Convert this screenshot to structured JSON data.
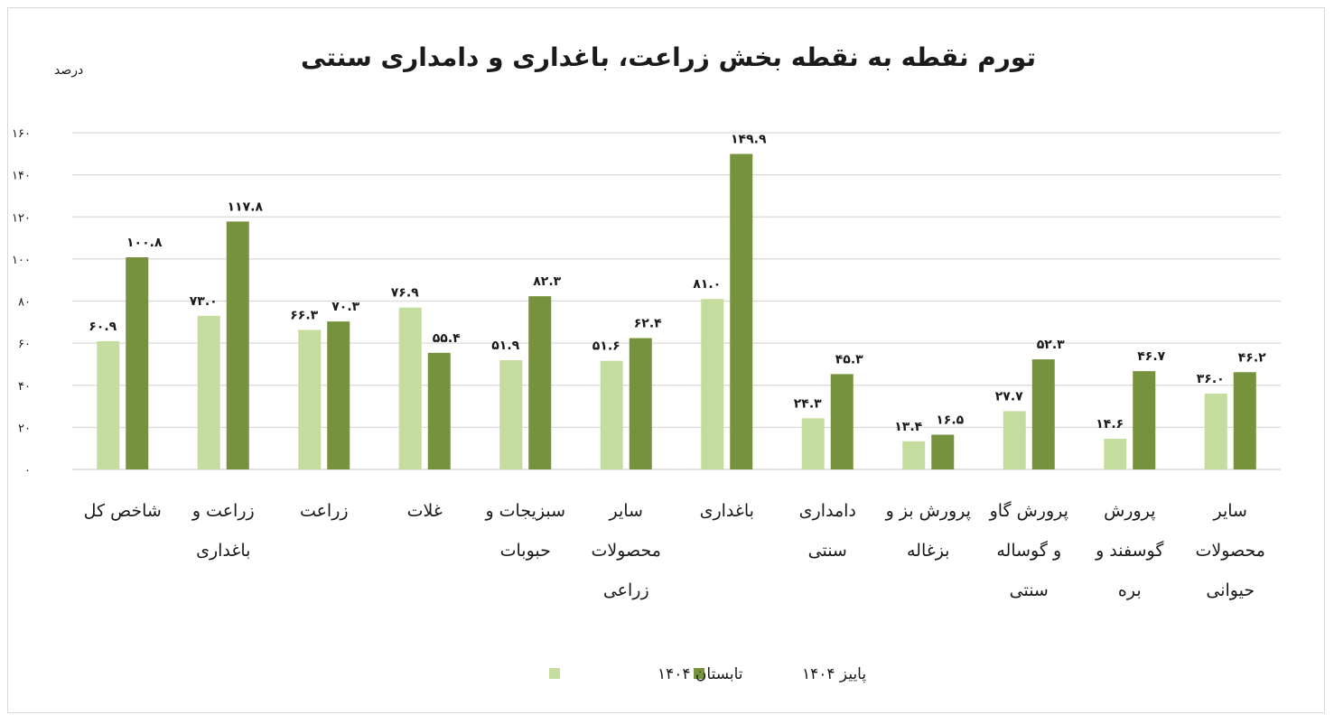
{
  "chart_data": {
    "type": "bar",
    "title": "تورم نقطه به نقطه بخش زراعت، باغداری و دامداری سنتی",
    "ylabel": "درصد",
    "ylim": [
      0,
      160
    ],
    "yticks": [
      "۰",
      "۲۰",
      "۴۰",
      "۶۰",
      "۸۰",
      "۱۰۰",
      "۱۲۰",
      "۱۴۰",
      "۱۶۰"
    ],
    "grid": true,
    "legend_position": "bottom-center",
    "categories": [
      [
        "شاخص کل"
      ],
      [
        "زراعت و",
        "باغداری"
      ],
      [
        "زراعت"
      ],
      [
        "غلات"
      ],
      [
        "سبزیجات و",
        "حبوبات"
      ],
      [
        "سایر",
        "محصولات",
        "زراعی"
      ],
      [
        "باغداری"
      ],
      [
        "دامداری",
        "سنتی"
      ],
      [
        "پرورش بز و",
        "بزغاله"
      ],
      [
        "پرورش گاو",
        "و گوساله",
        "سنتی"
      ],
      [
        "پرورش",
        "گوسفند و",
        "بره"
      ],
      [
        "سایر",
        "محصولات",
        "حیوانی"
      ]
    ],
    "series": [
      {
        "name": "تابستان ۱۴۰۴",
        "color": "#c5dc9f",
        "values": [
          60.9,
          73.0,
          66.3,
          76.9,
          51.9,
          51.6,
          81.0,
          24.3,
          13.4,
          27.7,
          14.6,
          36.0
        ],
        "labels": [
          "۶۰.۹",
          "۷۳.۰",
          "۶۶.۳",
          "۷۶.۹",
          "۵۱.۹",
          "۵۱.۶",
          "۸۱.۰",
          "۲۴.۳",
          "۱۳.۴",
          "۲۷.۷",
          "۱۴.۶",
          "۳۶.۰"
        ]
      },
      {
        "name": "پاییز ۱۴۰۴",
        "color": "#76923c",
        "values": [
          100.8,
          117.8,
          70.3,
          55.4,
          82.3,
          62.4,
          149.9,
          45.3,
          16.5,
          52.3,
          46.7,
          46.2
        ],
        "labels": [
          "۱۰۰.۸",
          "۱۱۷.۸",
          "۷۰.۳",
          "۵۵.۴",
          "۸۲.۳",
          "۶۲.۴",
          "۱۴۹.۹",
          "۴۵.۳",
          "۱۶.۵",
          "۵۲.۳",
          "۴۶.۷",
          "۴۶.۲"
        ]
      }
    ]
  }
}
